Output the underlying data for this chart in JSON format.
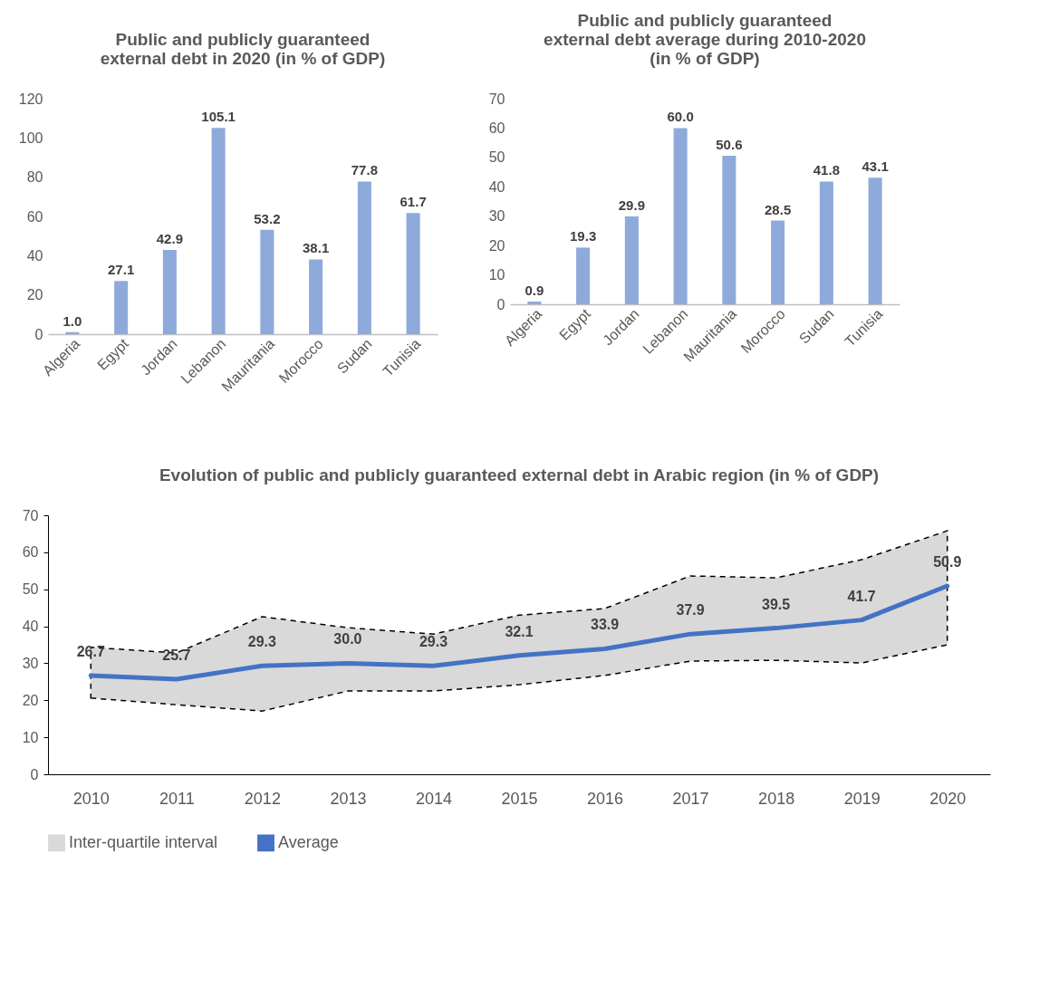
{
  "chart_data": [
    {
      "type": "bar",
      "title": "Public and publicly guaranteed external debt in 2020 (in % of GDP)",
      "categories": [
        "Algeria",
        "Egypt",
        "Jordan",
        "Lebanon",
        "Mauritania",
        "Morocco",
        "Sudan",
        "Tunisia"
      ],
      "values": [
        1.0,
        27.1,
        42.9,
        105.1,
        53.2,
        38.1,
        77.8,
        61.7
      ],
      "value_labels": [
        "1.0",
        "27.1",
        "42.9",
        "105.1",
        "53.2",
        "38.1",
        "77.8",
        "61.7"
      ],
      "color": "#8eaadb",
      "ylim": [
        0,
        120
      ],
      "yticks": [
        0,
        20,
        40,
        60,
        80,
        100,
        120
      ],
      "grid": false
    },
    {
      "type": "bar",
      "title": "Public and publicly guaranteed external debt average during 2010-2020 (in % of GDP)",
      "categories": [
        "Algeria",
        "Egypt",
        "Jordan",
        "Lebanon",
        "Mauritania",
        "Morocco",
        "Sudan",
        "Tunisia"
      ],
      "values": [
        0.9,
        19.3,
        29.9,
        60.0,
        50.6,
        28.5,
        41.8,
        43.1
      ],
      "value_labels": [
        "0.9",
        "19.3",
        "29.9",
        "60.0",
        "50.6",
        "28.5",
        "41.8",
        "43.1"
      ],
      "color": "#8eaadb",
      "ylim": [
        0,
        70
      ],
      "yticks": [
        0,
        10,
        20,
        30,
        40,
        50,
        60,
        70
      ],
      "grid": false
    },
    {
      "type": "line",
      "title": "Evolution of public and publicly guaranteed external debt in Arabic region (in % of GDP)",
      "categories": [
        "2010",
        "2011",
        "2012",
        "2013",
        "2014",
        "2015",
        "2016",
        "2017",
        "2018",
        "2019",
        "2020"
      ],
      "ylim": [
        0,
        70
      ],
      "yticks": [
        0,
        10,
        20,
        30,
        40,
        50,
        60,
        70
      ],
      "grid": false,
      "legend": "bottom",
      "series": [
        {
          "name": "Inter-quartile interval",
          "type": "area",
          "color": "#d9d9d9",
          "values": [
            null,
            null,
            null,
            null,
            null,
            null,
            null,
            null,
            null,
            null,
            null
          ],
          "lower": [
            20.6,
            18.8,
            17.1,
            22.5,
            22.5,
            24.2,
            26.7,
            30.6,
            30.8,
            30.1,
            35.0
          ],
          "upper": [
            34.3,
            32.8,
            42.6,
            39.6,
            37.9,
            43.0,
            44.8,
            53.6,
            53.1,
            58.0,
            65.8
          ]
        },
        {
          "name": "Average",
          "type": "line",
          "color": "#4472c4",
          "values": [
            26.7,
            25.7,
            29.3,
            30.0,
            29.3,
            32.1,
            33.9,
            37.9,
            39.5,
            41.7,
            50.9
          ],
          "value_labels": [
            "26.7",
            "25.7",
            "29.3",
            "30.0",
            "29.3",
            "32.1",
            "33.9",
            "37.9",
            "39.5",
            "41.7",
            "50.9"
          ]
        }
      ]
    }
  ]
}
